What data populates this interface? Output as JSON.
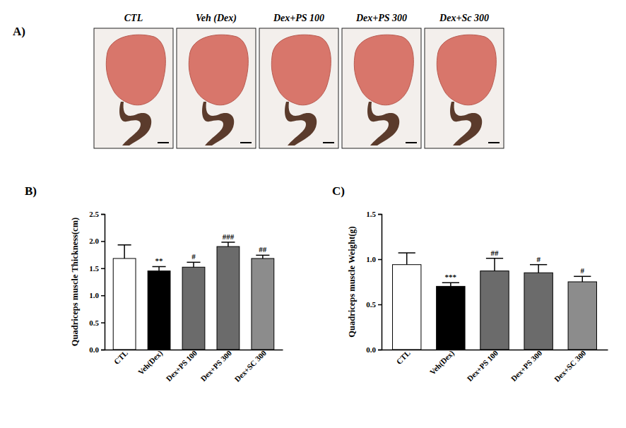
{
  "chart_data": [
    {
      "type": "image",
      "title": "A)",
      "categories": [
        "CTL",
        "Veh (Dex)",
        "Dex+PS 100",
        "Dex+PS 300",
        "Dex+Sc 300"
      ]
    },
    {
      "type": "bar",
      "title": "B)",
      "y_label": "Quadriceps muscle Thickness(cm)",
      "categories": [
        "CTL",
        "Veh(Dex)",
        "Dex+PS 100",
        "Dex+PS 300",
        "Dex+SC 300"
      ],
      "values": [
        1.68,
        1.45,
        1.52,
        1.9,
        1.68
      ],
      "errors": [
        0.25,
        0.08,
        0.09,
        0.08,
        0.06
      ],
      "annotations": [
        null,
        "**",
        "#",
        "###",
        "##"
      ],
      "colors": [
        "#ffffff",
        "#000000",
        "#6b6b6b",
        "#6b6b6b",
        "#8c8c8c"
      ],
      "ylim": [
        0,
        2.5
      ],
      "yticks": [
        {
          "value": 0,
          "label": "0.0"
        },
        0.5,
        {
          "value": 1,
          "label": "1.0"
        },
        1.5,
        {
          "value": 2,
          "label": "2.0"
        },
        2.5
      ]
    },
    {
      "type": "bar",
      "title": "C)",
      "y_label": "Quadriceps muscle Weight(g)",
      "categories": [
        "CTL",
        "Veh(Dex)",
        "Dex+PS 100",
        "Dex+PS 300",
        "Dex+SC 300"
      ],
      "values": [
        0.94,
        0.7,
        0.87,
        0.85,
        0.75
      ],
      "errors": [
        0.13,
        0.04,
        0.14,
        0.09,
        0.06
      ],
      "annotations": [
        null,
        "***",
        "##",
        "#",
        "#"
      ],
      "colors": [
        "#ffffff",
        "#000000",
        "#6b6b6b",
        "#6b6b6b",
        "#8c8c8c"
      ],
      "ylim": [
        0,
        1.5
      ],
      "yticks": [
        {
          "value": 0,
          "label": "0.0"
        },
        0.5,
        {
          "value": 1,
          "label": "1.0"
        },
        1.5
      ]
    }
  ]
}
